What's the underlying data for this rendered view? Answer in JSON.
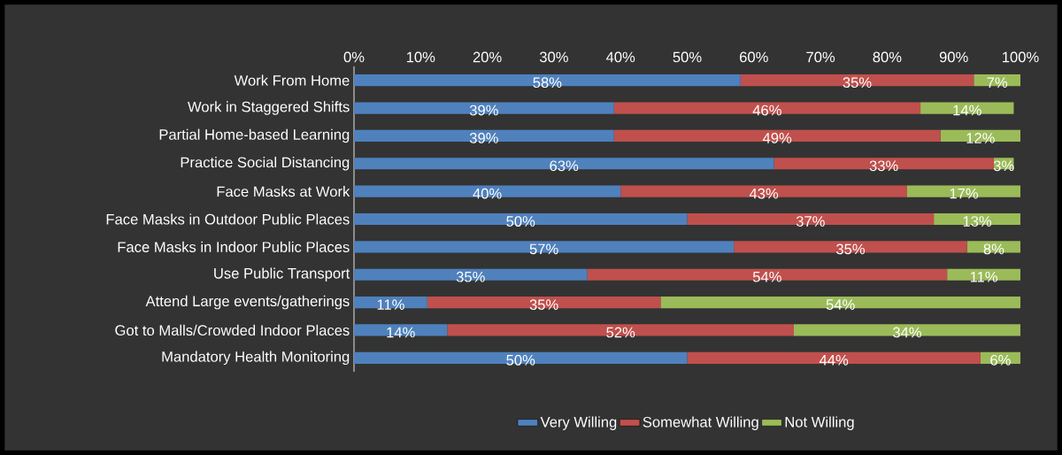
{
  "chart_data": {
    "type": "bar",
    "orientation": "horizontal",
    "stacked": true,
    "legend": "bottom",
    "categories": [
      "Work From Home",
      "Work in Staggered Shifts",
      "Partial Home-based Learning",
      "Practice Social Distancing",
      "Face Masks at Work",
      "Face Masks in Outdoor Public Places",
      "Face Masks in Indoor Public Places",
      "Use Public Transport",
      "Attend Large events/gatherings",
      "Got to Malls/Crowded Indoor Places",
      "Mandatory Health Monitoring"
    ],
    "series": [
      {
        "name": "Very Willing",
        "color": "#4f81bd",
        "values": [
          58,
          39,
          39,
          63,
          40,
          50,
          57,
          35,
          11,
          14,
          50
        ],
        "value_labels": [
          "58%",
          "39%",
          "39%",
          "63%",
          "40%",
          "50%",
          "57%",
          "35%",
          "11%",
          "14%",
          "50%"
        ]
      },
      {
        "name": "Somewhat Willing",
        "color": "#c0504d",
        "values": [
          35,
          46,
          49,
          33,
          43,
          37,
          35,
          54,
          35,
          52,
          44
        ],
        "value_labels": [
          "35%",
          "46%",
          "49%",
          "33%",
          "43%",
          "37%",
          "35%",
          "54%",
          "35%",
          "52%",
          "44%"
        ]
      },
      {
        "name": "Not Willing",
        "color": "#9bbb59",
        "values": [
          7,
          14,
          12,
          3,
          17,
          13,
          8,
          11,
          54,
          34,
          6
        ],
        "value_labels": [
          "7%",
          "14%",
          "12%",
          "3%",
          "17%",
          "13%",
          "8%",
          "11%",
          "54%",
          "34%",
          "6%"
        ]
      }
    ],
    "xlim": [
      0,
      100
    ],
    "xticks": [
      {
        "value": 0,
        "label": "0%"
      },
      {
        "value": 10,
        "label": "10%"
      },
      {
        "value": 20,
        "label": "20%"
      },
      {
        "value": 30,
        "label": "30%"
      },
      {
        "value": 40,
        "label": "40%"
      },
      {
        "value": 50,
        "label": "50%"
      },
      {
        "value": 60,
        "label": "60%"
      },
      {
        "value": 70,
        "label": "70%"
      },
      {
        "value": 80,
        "label": "80%"
      },
      {
        "value": 90,
        "label": "90%"
      },
      {
        "value": 100,
        "label": "100%"
      }
    ]
  }
}
